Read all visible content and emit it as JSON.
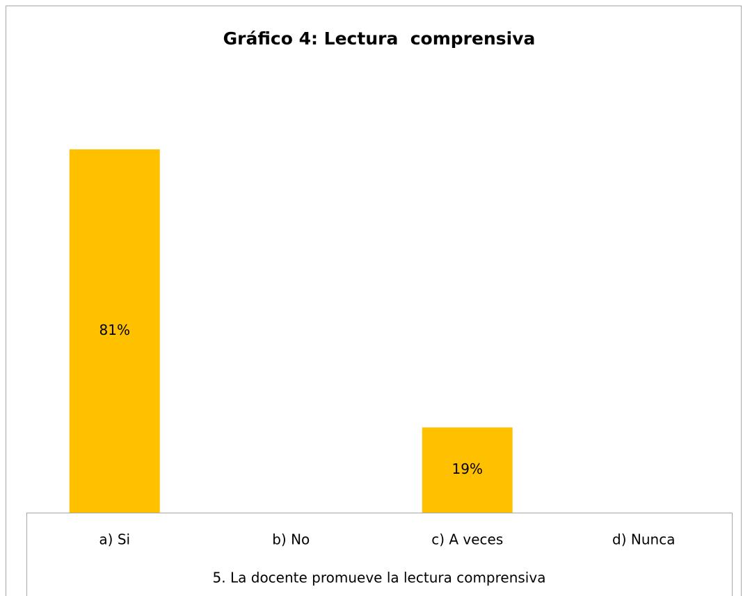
{
  "chart_data": {
    "type": "bar",
    "title": "Gráfico 4: Lectura  comprensiva",
    "x_label": "5. La docente promueve la lectura comprensiva",
    "categories": [
      "a) Si",
      "b) No",
      "c) A veces",
      "d) Nunca"
    ],
    "values": [
      81,
      0,
      19,
      0
    ],
    "value_labels": [
      "81%",
      null,
      "19%",
      null
    ],
    "color": "#ffc000"
  }
}
